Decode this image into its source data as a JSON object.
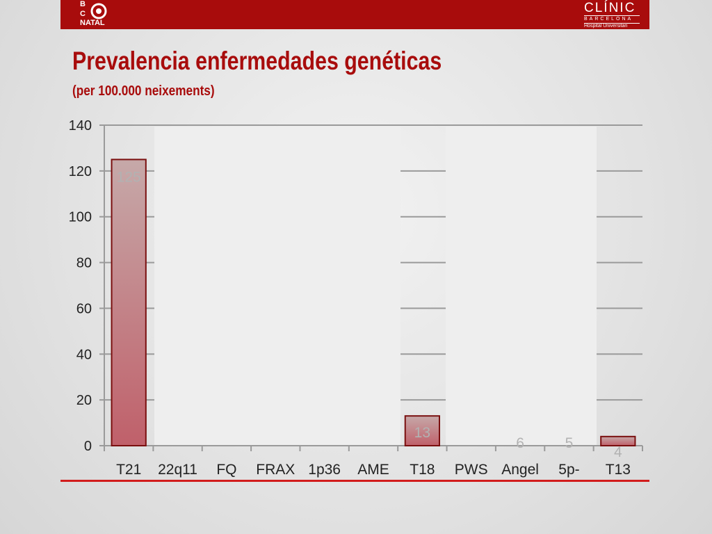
{
  "header": {
    "left_logo": {
      "line1": "B",
      "line2": "C",
      "line3": "NATAL"
    },
    "right_logo": {
      "name": "CLÍNIC",
      "city": "BARCELONA",
      "sub": "Hospital Universitari"
    }
  },
  "slide": {
    "title": "Prevalencia enfermedades genéticas",
    "subtitle": "(per 100.000 neixements)"
  },
  "colors": {
    "brand_red": "#a80c0c",
    "accent_rule": "#d21c1c",
    "bar_fill_top": "#c6a9a9",
    "bar_fill_bottom": "#c0606a",
    "bar_border": "#7a0f0f"
  },
  "chart_data": {
    "type": "bar",
    "categories": [
      "T21",
      "22q11",
      "FQ",
      "FRAX",
      "1p36",
      "AME",
      "T18",
      "PWS",
      "Angel",
      "5p-",
      "T13"
    ],
    "values": [
      125,
      null,
      null,
      null,
      null,
      null,
      13,
      null,
      null,
      null,
      4
    ],
    "data_labels": [
      "125",
      "",
      "",
      "",
      "",
      "",
      "13",
      "",
      "6",
      "5",
      "4"
    ],
    "ylim": [
      0,
      140
    ],
    "yticks": [
      0,
      20,
      40,
      60,
      80,
      100,
      120,
      140
    ],
    "grid": true,
    "title": "",
    "xlabel": "",
    "ylabel": ""
  }
}
